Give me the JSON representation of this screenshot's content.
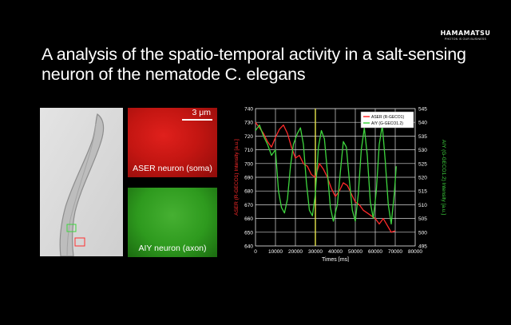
{
  "brand": {
    "name": "HAMAMATSU",
    "tagline": "PHOTON IS OUR BUSINESS"
  },
  "slide": {
    "title": "A analysis of the spatio-temporal activity in a salt-sensing neuron of the nematode C. elegans"
  },
  "images": {
    "scale_label": "3 μm",
    "aser_label": "ASER neuron (soma)",
    "aiy_label": "AIY neuron (axon)"
  },
  "colors": {
    "aser": "#ff2a2a",
    "aiy": "#3ed53e",
    "marker": "#e6e44c",
    "background": "#000000"
  },
  "chart_data": {
    "type": "line",
    "xlabel": "Times [ms]",
    "ylabel_left": "ASER (R-GECO1) Intensity [a.u.]",
    "ylabel_right": "AIY (G-GECO1.2) Intensity [a.u.]",
    "xlim": [
      0,
      80000
    ],
    "ylim_left": [
      640,
      740
    ],
    "ylim_right": [
      495,
      545
    ],
    "x_ticks": [
      "0",
      "10000",
      "20000",
      "30000",
      "40000",
      "50000",
      "60000",
      "70000",
      "80000"
    ],
    "y_ticks_left": [
      "640",
      "650",
      "660",
      "670",
      "680",
      "690",
      "700",
      "710",
      "720",
      "730",
      "740"
    ],
    "y_ticks_right": [
      "495",
      "500",
      "505",
      "510",
      "515",
      "520",
      "525",
      "530",
      "535",
      "540",
      "545"
    ],
    "grid": true,
    "legend_position": "top-right",
    "marker_x": 30000,
    "series": [
      {
        "name": "ASER (R-GECO1)",
        "axis": "left",
        "color": "#ff2a2a",
        "x": [
          0,
          2000,
          4000,
          6000,
          8000,
          10000,
          12000,
          14000,
          16000,
          18000,
          20000,
          22000,
          24000,
          26000,
          28000,
          30000,
          32000,
          34000,
          36000,
          38000,
          40000,
          42000,
          44000,
          46000,
          48000,
          50000,
          52000,
          54000,
          56000,
          58000,
          60000,
          62000,
          64000,
          66000,
          68000,
          70000
        ],
        "y": [
          730,
          726,
          722,
          716,
          712,
          719,
          725,
          728,
          722,
          712,
          704,
          706,
          700,
          698,
          692,
          690,
          700,
          696,
          690,
          682,
          676,
          680,
          686,
          684,
          678,
          672,
          670,
          666,
          664,
          662,
          660,
          656,
          660,
          655,
          650,
          651
        ]
      },
      {
        "name": "AIY (G-GECO1.2)",
        "axis": "right",
        "color": "#3ed53e",
        "x": [
          0,
          2000,
          4000,
          6000,
          8000,
          10000,
          11500,
          13000,
          14500,
          16000,
          17500,
          19000,
          21000,
          22500,
          24000,
          25500,
          27000,
          28500,
          30000,
          31500,
          33000,
          34500,
          36000,
          37500,
          39000,
          41000,
          42500,
          44000,
          45500,
          47000,
          48500,
          50000,
          51500,
          53000,
          54500,
          56000,
          57500,
          59000,
          60500,
          62000,
          63500,
          65000,
          66500,
          68000,
          69500,
          70500
        ],
        "y": [
          537,
          539,
          535,
          532,
          528,
          530,
          515,
          509,
          507,
          512,
          524,
          532,
          536,
          538,
          532,
          518,
          508,
          506,
          514,
          531,
          537,
          534,
          522,
          509,
          504,
          510,
          522,
          533,
          531,
          519,
          508,
          504,
          514,
          530,
          538,
          528,
          511,
          505,
          515,
          532,
          539,
          526,
          510,
          503,
          514,
          524
        ]
      }
    ]
  }
}
